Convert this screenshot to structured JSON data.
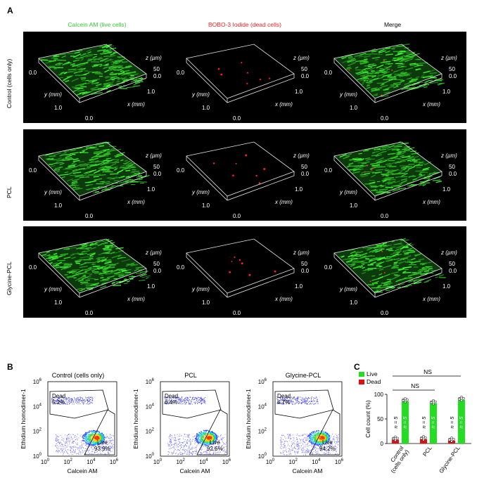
{
  "panel_a": {
    "letter": "A",
    "columns": [
      "Calcein AM (live cells)",
      "BOBO-3 Iodide (dead cells)",
      "Merge"
    ],
    "column_colors": [
      "#33cc33",
      "#ee2222",
      "#000000"
    ],
    "rows": [
      "Control (cells only)",
      "PCL",
      "Glycine-PCL"
    ],
    "axis": {
      "x": "x (mm)",
      "y": "y (mm)",
      "z": "z (µm)",
      "v0": "0.0",
      "v1": "1.0",
      "v50": "50"
    }
  },
  "panel_b": {
    "letter": "B",
    "plots": [
      {
        "title": "Control (cells only)",
        "dead_label": "Dead",
        "dead_pct": "5.2%",
        "live_label": "Live",
        "live_pct": "93.9%"
      },
      {
        "title": "PCL",
        "dead_label": "Dead",
        "dead_pct": "6.4%",
        "live_label": "Live",
        "live_pct": "92.6%"
      },
      {
        "title": "Glycine-PCL",
        "dead_label": "Dead",
        "dead_pct": "4.7%",
        "live_label": "Live",
        "live_pct": "94.2%"
      }
    ],
    "xlabel": "Calcein AM",
    "ylabel": "Ethidium homodimer-1",
    "tick_base": "10",
    "tick_exps": [
      "0",
      "2",
      "4",
      "6"
    ]
  },
  "chart_data": {
    "type": "bar",
    "letter": "C",
    "categories": [
      "Control (cells only)",
      "PCL",
      "Glycine-PCL"
    ],
    "series": [
      {
        "name": "Live",
        "color": "#22dd22",
        "values": [
          86,
          82,
          89
        ]
      },
      {
        "name": "Dead",
        "color": "#dd1111",
        "values": [
          8,
          9,
          6
        ]
      }
    ],
    "ylabel": "Cell count (%)",
    "ylim": [
      0,
      100
    ],
    "yticks": [
      "0",
      "50",
      "100"
    ],
    "n_label": "n = 5",
    "significance": [
      "NS",
      "NS"
    ]
  }
}
